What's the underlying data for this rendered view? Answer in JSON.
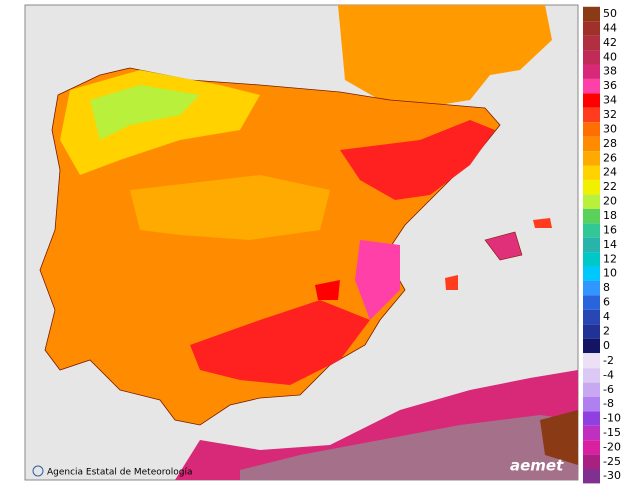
{
  "legend": {
    "items": [
      {
        "label": "50",
        "color": "#8a3a14"
      },
      {
        "label": "44",
        "color": "#a0302a"
      },
      {
        "label": "42",
        "color": "#b03040"
      },
      {
        "label": "40",
        "color": "#c02c58"
      },
      {
        "label": "38",
        "color": "#d82878"
      },
      {
        "label": "36",
        "color": "#ff40a8"
      },
      {
        "label": "34",
        "color": "#ff0000"
      },
      {
        "label": "32",
        "color": "#ff3c1e"
      },
      {
        "label": "30",
        "color": "#ff6e00"
      },
      {
        "label": "28",
        "color": "#ff8c00"
      },
      {
        "label": "26",
        "color": "#ffaa00"
      },
      {
        "label": "24",
        "color": "#ffd200"
      },
      {
        "label": "22",
        "color": "#f0f000"
      },
      {
        "label": "20",
        "color": "#b8f03c"
      },
      {
        "label": "18",
        "color": "#5ad25a"
      },
      {
        "label": "16",
        "color": "#32c896"
      },
      {
        "label": "14",
        "color": "#28b4aa"
      },
      {
        "label": "12",
        "color": "#00c8c8"
      },
      {
        "label": "10",
        "color": "#00c8ff"
      },
      {
        "label": "8",
        "color": "#3296ff"
      },
      {
        "label": "6",
        "color": "#2864dc"
      },
      {
        "label": "4",
        "color": "#2846b4"
      },
      {
        "label": "2",
        "color": "#203296"
      },
      {
        "label": "0",
        "color": "#141464"
      }
    ],
    "negative_items": [
      {
        "label": "-2",
        "color": "#ece0f4"
      },
      {
        "label": "-4",
        "color": "#dcc8f4"
      },
      {
        "label": "-6",
        "color": "#c8a8f0"
      },
      {
        "label": "-8",
        "color": "#b080f0"
      },
      {
        "label": "-10",
        "color": "#9040e0"
      },
      {
        "label": "-15",
        "color": "#c030c0"
      },
      {
        "label": "-20",
        "color": "#d820a0"
      },
      {
        "label": "-25",
        "color": "#a82080"
      },
      {
        "label": "-30",
        "color": "#803090"
      }
    ]
  },
  "credit": "Agencia Estatal de Meteorología",
  "logo": "aemet"
}
